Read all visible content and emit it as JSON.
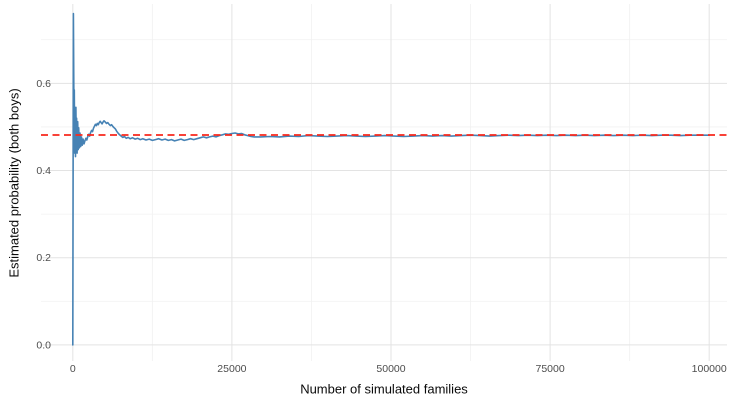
{
  "colors": {
    "background": "#FFFFFF",
    "series_line": "#4682B4",
    "reference_line": "#F8281C",
    "grid_major": "#E3E3E3",
    "grid_minor": "#F1F1F1",
    "tick_text": "#4D4D4D",
    "title_text": "#0A0A0A"
  },
  "chart_data": {
    "type": "line",
    "title": "",
    "xlabel": "Number of simulated families",
    "ylabel": "Estimated probability (both boys)",
    "xlim": [
      -5000,
      102800
    ],
    "ylim": [
      -0.037,
      0.782
    ],
    "x_ticks": [
      0,
      25000,
      50000,
      75000,
      100000
    ],
    "x_tick_labels": [
      "0",
      "25000",
      "50000",
      "75000",
      "100000"
    ],
    "x_minor_ticks": [
      12500,
      37500,
      62500,
      87500
    ],
    "y_ticks": [
      0.0,
      0.2,
      0.4,
      0.6
    ],
    "y_tick_labels": [
      "0.0",
      "0.2",
      "0.4",
      "0.6"
    ],
    "y_minor_ticks": [
      0.1,
      0.3,
      0.5,
      0.7
    ],
    "grid": "major+minor",
    "legend": "none",
    "reference_line": {
      "value": 0.4815,
      "color": "#F8281C",
      "style": "dashed"
    },
    "series": [
      {
        "name": "estimated-probability",
        "color": "#4682B4",
        "points": [
          [
            1,
            0.0
          ],
          [
            90,
            0.76
          ],
          [
            180,
            0.52
          ],
          [
            240,
            0.585
          ],
          [
            300,
            0.44
          ],
          [
            360,
            0.5
          ],
          [
            420,
            0.432
          ],
          [
            480,
            0.545
          ],
          [
            540,
            0.452
          ],
          [
            600,
            0.52
          ],
          [
            680,
            0.44
          ],
          [
            760,
            0.512
          ],
          [
            840,
            0.448
          ],
          [
            930,
            0.498
          ],
          [
            1030,
            0.452
          ],
          [
            1130,
            0.486
          ],
          [
            1240,
            0.455
          ],
          [
            1360,
            0.477
          ],
          [
            1480,
            0.458
          ],
          [
            1620,
            0.472
          ],
          [
            1760,
            0.461
          ],
          [
            1900,
            0.468
          ],
          [
            2050,
            0.474
          ],
          [
            2200,
            0.47
          ],
          [
            2350,
            0.478
          ],
          [
            2500,
            0.483
          ],
          [
            2650,
            0.479
          ],
          [
            2800,
            0.487
          ],
          [
            2950,
            0.492
          ],
          [
            3100,
            0.489
          ],
          [
            3250,
            0.497
          ],
          [
            3400,
            0.502
          ],
          [
            3550,
            0.506
          ],
          [
            3700,
            0.503
          ],
          [
            3850,
            0.508
          ],
          [
            4000,
            0.505
          ],
          [
            4150,
            0.51
          ],
          [
            4300,
            0.513
          ],
          [
            4450,
            0.51
          ],
          [
            4600,
            0.507
          ],
          [
            4750,
            0.511
          ],
          [
            4900,
            0.514
          ],
          [
            5100,
            0.511
          ],
          [
            5300,
            0.508
          ],
          [
            5500,
            0.51
          ],
          [
            5700,
            0.506
          ],
          [
            5900,
            0.503
          ],
          [
            6100,
            0.505
          ],
          [
            6300,
            0.501
          ],
          [
            6500,
            0.498
          ],
          [
            6700,
            0.495
          ],
          [
            6900,
            0.49
          ],
          [
            7100,
            0.486
          ],
          [
            7350,
            0.482
          ],
          [
            7600,
            0.479
          ],
          [
            7850,
            0.476
          ],
          [
            8100,
            0.478
          ],
          [
            8400,
            0.474
          ],
          [
            8700,
            0.476
          ],
          [
            9000,
            0.473
          ],
          [
            9400,
            0.475
          ],
          [
            9800,
            0.472
          ],
          [
            10200,
            0.474
          ],
          [
            10600,
            0.471
          ],
          [
            11000,
            0.473
          ],
          [
            11500,
            0.47
          ],
          [
            12000,
            0.472
          ],
          [
            12500,
            0.469
          ],
          [
            13000,
            0.471
          ],
          [
            13500,
            0.473
          ],
          [
            14000,
            0.47
          ],
          [
            14500,
            0.472
          ],
          [
            15000,
            0.469
          ],
          [
            15500,
            0.471
          ],
          [
            16000,
            0.468
          ],
          [
            16500,
            0.47
          ],
          [
            17000,
            0.472
          ],
          [
            17500,
            0.469
          ],
          [
            18000,
            0.471
          ],
          [
            18500,
            0.473
          ],
          [
            19000,
            0.471
          ],
          [
            19500,
            0.473
          ],
          [
            20000,
            0.475
          ],
          [
            20500,
            0.477
          ],
          [
            21000,
            0.475
          ],
          [
            21500,
            0.477
          ],
          [
            22000,
            0.479
          ],
          [
            22500,
            0.477
          ],
          [
            23000,
            0.48
          ],
          [
            23500,
            0.482
          ],
          [
            24000,
            0.484
          ],
          [
            24500,
            0.483
          ],
          [
            25000,
            0.485
          ],
          [
            25500,
            0.486
          ],
          [
            26000,
            0.484
          ],
          [
            26500,
            0.485
          ],
          [
            27000,
            0.482
          ],
          [
            27500,
            0.48
          ],
          [
            28000,
            0.478
          ],
          [
            28500,
            0.477
          ],
          [
            29500,
            0.477
          ],
          [
            31000,
            0.478
          ],
          [
            32500,
            0.477
          ],
          [
            34000,
            0.479
          ],
          [
            35500,
            0.478
          ],
          [
            37000,
            0.48
          ],
          [
            38500,
            0.479
          ],
          [
            40000,
            0.478
          ],
          [
            41500,
            0.479
          ],
          [
            43000,
            0.48
          ],
          [
            44500,
            0.479
          ],
          [
            46000,
            0.478
          ],
          [
            47500,
            0.479
          ],
          [
            49000,
            0.48
          ],
          [
            50500,
            0.479
          ],
          [
            52000,
            0.478
          ],
          [
            53500,
            0.479
          ],
          [
            55000,
            0.48
          ],
          [
            56500,
            0.479
          ],
          [
            58000,
            0.48
          ],
          [
            59500,
            0.479
          ],
          [
            61000,
            0.48
          ],
          [
            62500,
            0.481
          ],
          [
            64000,
            0.48
          ],
          [
            65500,
            0.479
          ],
          [
            67000,
            0.48
          ],
          [
            68500,
            0.481
          ],
          [
            70000,
            0.48
          ],
          [
            71500,
            0.481
          ],
          [
            73000,
            0.48
          ],
          [
            74500,
            0.481
          ],
          [
            76000,
            0.48
          ],
          [
            77500,
            0.481
          ],
          [
            79000,
            0.48
          ],
          [
            80500,
            0.481
          ],
          [
            82000,
            0.48
          ],
          [
            83500,
            0.481
          ],
          [
            85000,
            0.48
          ],
          [
            86500,
            0.481
          ],
          [
            88000,
            0.48
          ],
          [
            89500,
            0.481
          ],
          [
            91000,
            0.48
          ],
          [
            92500,
            0.481
          ],
          [
            94000,
            0.481
          ],
          [
            95500,
            0.48
          ],
          [
            97000,
            0.481
          ],
          [
            98500,
            0.481
          ],
          [
            100000,
            0.481
          ]
        ]
      }
    ]
  }
}
